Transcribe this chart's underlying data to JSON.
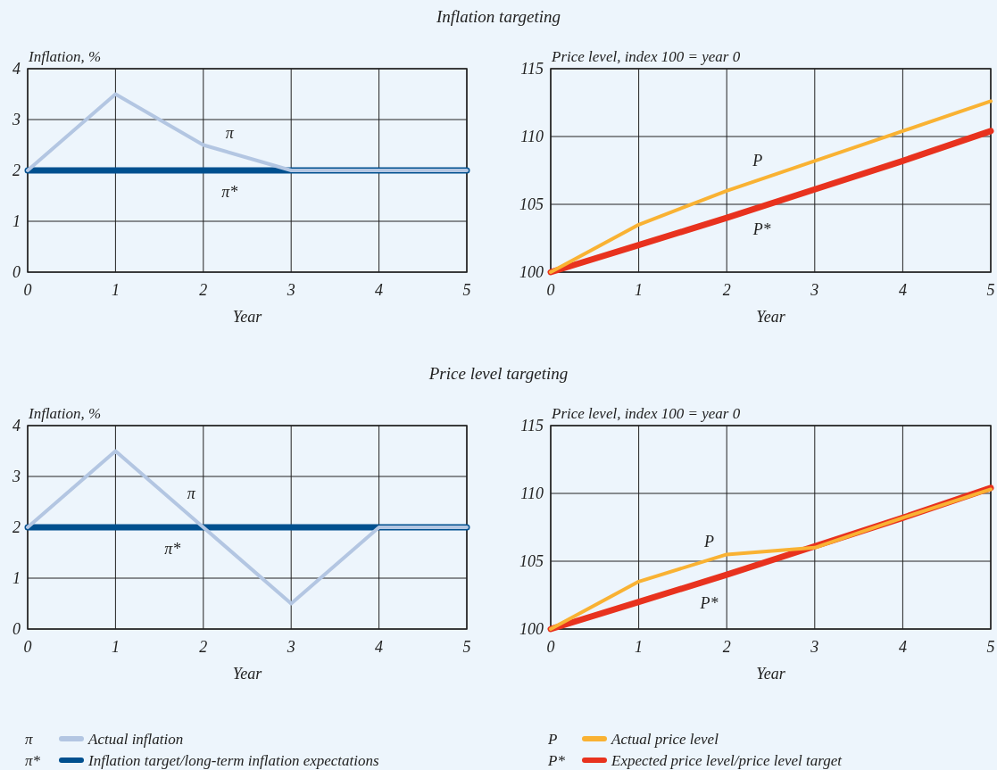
{
  "chart_data": [
    {
      "type": "line",
      "title": "Inflation targeting",
      "xlabel": "Year",
      "ylabel": "Inflation, %",
      "x": [
        0,
        1,
        2,
        3,
        4,
        5
      ],
      "xlim": [
        0,
        5
      ],
      "xticks": [
        0,
        1,
        2,
        3,
        4,
        5
      ],
      "ylim": [
        0,
        4
      ],
      "yticks": [
        0,
        1,
        2,
        3,
        4
      ],
      "grid": true,
      "legend": false,
      "series": [
        {
          "color": "#b3c6e2",
          "values": [
            2,
            3.5,
            2.5,
            2,
            2,
            2
          ]
        },
        {
          "color": "#00508f",
          "values": [
            2,
            2,
            2,
            2,
            2,
            2
          ]
        }
      ],
      "annotations": [
        "π",
        "π*"
      ]
    },
    {
      "type": "line",
      "xlabel": "Year",
      "ylabel": "Price level, index 100 = year 0",
      "x": [
        0,
        1,
        2,
        3,
        4,
        5
      ],
      "xlim": [
        0,
        5
      ],
      "xticks": [
        0,
        1,
        2,
        3,
        4,
        5
      ],
      "ylim": [
        100,
        115
      ],
      "yticks": [
        100,
        105,
        110,
        115
      ],
      "grid": true,
      "legend": false,
      "series": [
        {
          "color": "#f9b233",
          "values": [
            100,
            103.5,
            106,
            108.2,
            110.4,
            112.6
          ]
        },
        {
          "color": "#e8321e",
          "values": [
            100,
            102,
            104,
            106.1,
            108.2,
            110.4
          ]
        }
      ],
      "annotations": [
        "P",
        "P*"
      ]
    },
    {
      "type": "line",
      "title": "Price level targeting",
      "xlabel": "Year",
      "ylabel": "Inflation, %",
      "x": [
        0,
        1,
        2,
        3,
        4,
        5
      ],
      "xlim": [
        0,
        5
      ],
      "xticks": [
        0,
        1,
        2,
        3,
        4,
        5
      ],
      "ylim": [
        0,
        4
      ],
      "yticks": [
        0,
        1,
        2,
        3,
        4
      ],
      "grid": true,
      "legend": "bottom",
      "series": [
        {
          "name": "Actual inflation",
          "color": "#b3c6e2",
          "values": [
            2,
            3.5,
            2,
            0.5,
            2,
            2
          ]
        },
        {
          "name": "Inflation target/long-term inflation expectations",
          "color": "#00508f",
          "values": [
            2,
            2,
            2,
            2,
            2,
            2
          ]
        }
      ],
      "annotations": [
        "π",
        "π*",
        "π",
        "π*"
      ]
    },
    {
      "type": "line",
      "xlabel": "Year",
      "ylabel": "Price level, index 100 = year 0",
      "x": [
        0,
        1,
        2,
        3,
        4,
        5
      ],
      "xlim": [
        0,
        5
      ],
      "xticks": [
        0,
        1,
        2,
        3,
        4,
        5
      ],
      "ylim": [
        100,
        115
      ],
      "yticks": [
        100,
        105,
        110,
        115
      ],
      "grid": true,
      "legend": "bottom",
      "series": [
        {
          "name": "Actual price level",
          "color": "#f9b233",
          "values": [
            100,
            103.5,
            105.5,
            106,
            108.2,
            110.3
          ]
        },
        {
          "name": "Expected price level/price level target",
          "color": "#e8321e",
          "values": [
            100,
            102,
            104,
            106.1,
            108.2,
            110.4
          ]
        }
      ],
      "annotations": [
        "P",
        "P*",
        "P",
        "P*"
      ]
    }
  ]
}
